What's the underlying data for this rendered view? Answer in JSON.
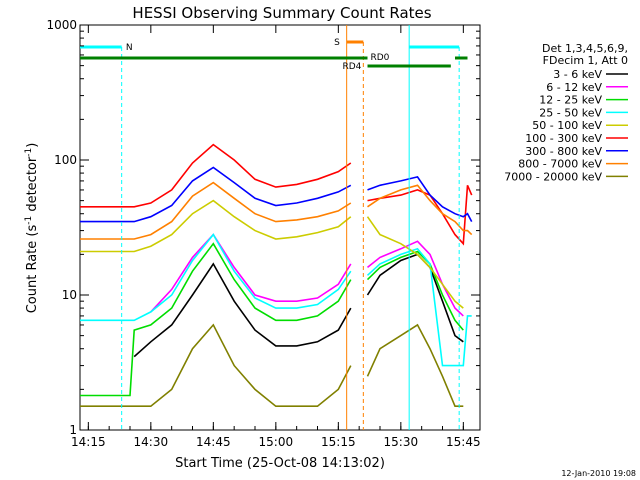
{
  "chart_data": {
    "type": "line",
    "title": "HESSI Observing Summary Count Rates",
    "xlabel": "Start Time (25-Oct-08 14:13:02)",
    "ylabel": "Count Rate (s",
    "ylabel_sup1": "-1",
    "ylabel_mid": " detector",
    "ylabel_sup2": "-1",
    "ylabel_end": ")",
    "y_scale": "log",
    "ylim": [
      1,
      1000
    ],
    "xlim": [
      "14:13",
      "15:49"
    ],
    "x_ticks": [
      "14:15",
      "14:30",
      "14:45",
      "15:00",
      "15:15",
      "15:30",
      "15:45"
    ],
    "y_ticks": [
      {
        "value": 1,
        "label": "1"
      },
      {
        "value": 10,
        "label": "10"
      },
      {
        "value": 100,
        "label": "100"
      },
      {
        "value": 1000,
        "label": "1000"
      }
    ],
    "grid": false,
    "legend_position": "right",
    "legend_header": [
      "Det 1,3,4,5,6,9,",
      "FDecim 1, Att 0"
    ],
    "series": [
      {
        "name": "3 - 6 keV",
        "color": "#000000",
        "x": [
          "14:13",
          "14:25",
          "14:26",
          "14:30",
          "14:35",
          "14:40",
          "14:45",
          "14:50",
          "14:55",
          "15:00",
          "15:05",
          "15:10",
          "15:15",
          "15:18",
          "15:20",
          "15:22",
          "15:25",
          "15:30",
          "15:34",
          "15:37",
          "15:40",
          "15:43",
          "15:45",
          "15:46",
          "15:47"
        ],
        "y": [
          null,
          null,
          3.5,
          4.5,
          6,
          10,
          17,
          9,
          5.5,
          4.2,
          4.2,
          4.5,
          5.5,
          8,
          null,
          10,
          14,
          18,
          20,
          16,
          9,
          5,
          4.5,
          null,
          null
        ]
      },
      {
        "name": "6 - 12 keV",
        "color": "#ff00ff",
        "x": [
          "14:13",
          "14:25",
          "14:26",
          "14:30",
          "14:35",
          "14:40",
          "14:45",
          "14:50",
          "14:55",
          "15:00",
          "15:05",
          "15:10",
          "15:15",
          "15:18",
          "15:20",
          "15:22",
          "15:25",
          "15:30",
          "15:34",
          "15:37",
          "15:40",
          "15:43",
          "15:45",
          "15:46",
          "15:47"
        ],
        "y": [
          null,
          null,
          null,
          7.5,
          11,
          19,
          28,
          16,
          10,
          9,
          9,
          9.5,
          12,
          17,
          null,
          16,
          19,
          22,
          25,
          20,
          12,
          8,
          7,
          null,
          null
        ]
      },
      {
        "name": "12 - 25 keV",
        "color": "#00dd00",
        "x": [
          "14:13",
          "14:25",
          "14:26",
          "14:30",
          "14:35",
          "14:40",
          "14:45",
          "14:50",
          "14:55",
          "15:00",
          "15:05",
          "15:10",
          "15:15",
          "15:18",
          "15:20",
          "15:22",
          "15:25",
          "15:30",
          "15:34",
          "15:37",
          "15:40",
          "15:43",
          "15:45",
          "15:46",
          "15:47"
        ],
        "y": [
          1.8,
          1.8,
          5.5,
          6,
          8,
          15,
          24,
          13,
          8,
          6.5,
          6.5,
          7,
          9,
          13,
          null,
          13,
          16,
          19,
          21,
          17,
          10,
          6.5,
          5.5,
          null,
          null
        ]
      },
      {
        "name": "25 - 50 keV",
        "color": "#00ffff",
        "x": [
          "14:13",
          "14:25",
          "14:26",
          "14:30",
          "14:35",
          "14:40",
          "14:45",
          "14:50",
          "14:55",
          "15:00",
          "15:05",
          "15:10",
          "15:15",
          "15:18",
          "15:20",
          "15:22",
          "15:25",
          "15:30",
          "15:34",
          "15:37",
          "15:40",
          "15:43",
          "15:45",
          "15:46",
          "15:47"
        ],
        "y": [
          6.5,
          6.5,
          6.5,
          7.5,
          10,
          18,
          28,
          15,
          9.5,
          8,
          8,
          8.5,
          11,
          15,
          null,
          14,
          17,
          20,
          22,
          17,
          3,
          3,
          3,
          7,
          7
        ]
      },
      {
        "name": "50 - 100 keV",
        "color": "#cccc00",
        "x": [
          "14:13",
          "14:25",
          "14:26",
          "14:30",
          "14:35",
          "14:40",
          "14:45",
          "14:50",
          "14:55",
          "15:00",
          "15:05",
          "15:10",
          "15:15",
          "15:18",
          "15:20",
          "15:22",
          "15:25",
          "15:30",
          "15:34",
          "15:37",
          "15:40",
          "15:43",
          "15:45",
          "15:46",
          "15:47"
        ],
        "y": [
          21,
          21,
          21,
          23,
          28,
          40,
          50,
          38,
          30,
          26,
          27,
          29,
          32,
          38,
          null,
          38,
          28,
          24,
          20,
          16,
          12,
          9,
          8,
          null,
          null
        ]
      },
      {
        "name": "100 - 300 keV",
        "color": "#ff0000",
        "x": [
          "14:13",
          "14:25",
          "14:26",
          "14:30",
          "14:35",
          "14:40",
          "14:45",
          "14:50",
          "14:55",
          "15:00",
          "15:05",
          "15:10",
          "15:15",
          "15:18",
          "15:20",
          "15:22",
          "15:25",
          "15:30",
          "15:34",
          "15:37",
          "15:40",
          "15:43",
          "15:45",
          "15:46",
          "15:47"
        ],
        "y": [
          45,
          45,
          45,
          48,
          60,
          95,
          130,
          100,
          72,
          63,
          66,
          72,
          82,
          95,
          null,
          50,
          52,
          55,
          60,
          55,
          40,
          28,
          24,
          65,
          55
        ]
      },
      {
        "name": "300 - 800 keV",
        "color": "#0000ff",
        "x": [
          "14:13",
          "14:25",
          "14:26",
          "14:30",
          "14:35",
          "14:40",
          "14:45",
          "14:50",
          "14:55",
          "15:00",
          "15:05",
          "15:10",
          "15:15",
          "15:18",
          "15:20",
          "15:22",
          "15:25",
          "15:30",
          "15:34",
          "15:37",
          "15:40",
          "15:43",
          "15:45",
          "15:46",
          "15:47"
        ],
        "y": [
          35,
          35,
          35,
          38,
          46,
          70,
          88,
          68,
          52,
          46,
          48,
          52,
          58,
          65,
          null,
          60,
          65,
          70,
          75,
          55,
          45,
          40,
          38,
          40,
          35
        ]
      },
      {
        "name": "800 - 7000 keV",
        "color": "#ff8000",
        "x": [
          "14:13",
          "14:25",
          "14:26",
          "14:30",
          "14:35",
          "14:40",
          "14:45",
          "14:50",
          "14:55",
          "15:00",
          "15:05",
          "15:10",
          "15:15",
          "15:18",
          "15:20",
          "15:22",
          "15:25",
          "15:30",
          "15:34",
          "15:37",
          "15:40",
          "15:43",
          "15:45",
          "15:46",
          "15:47"
        ],
        "y": [
          26,
          26,
          26,
          28,
          35,
          54,
          68,
          52,
          40,
          35,
          36,
          38,
          42,
          48,
          null,
          45,
          52,
          60,
          65,
          50,
          40,
          35,
          30,
          30,
          28
        ]
      },
      {
        "name": "7000 - 20000 keV",
        "color": "#808000",
        "x": [
          "14:13",
          "14:25",
          "14:26",
          "14:30",
          "14:35",
          "14:40",
          "14:45",
          "14:50",
          "14:55",
          "15:00",
          "15:05",
          "15:10",
          "15:15",
          "15:18",
          "15:20",
          "15:22",
          "15:25",
          "15:30",
          "15:34",
          "15:37",
          "15:40",
          "15:43",
          "15:45",
          "15:46",
          "15:47"
        ],
        "y": [
          1.5,
          1.5,
          1.5,
          1.5,
          2,
          4,
          6,
          3,
          2,
          1.5,
          1.5,
          1.5,
          2,
          3,
          null,
          2.5,
          4,
          5,
          6,
          4,
          2.5,
          1.5,
          1.5,
          null,
          null
        ]
      }
    ],
    "annotations": {
      "saa_label": "N",
      "attenuator_label": "S",
      "rd0_label": "RD0",
      "rd4_label": "RD4"
    }
  },
  "footer": {
    "timestamp": "12-Jan-2010 19:08"
  },
  "colors": {
    "saa": "#00ffff",
    "attenuator": "#ff8000",
    "rd": "#008000"
  }
}
